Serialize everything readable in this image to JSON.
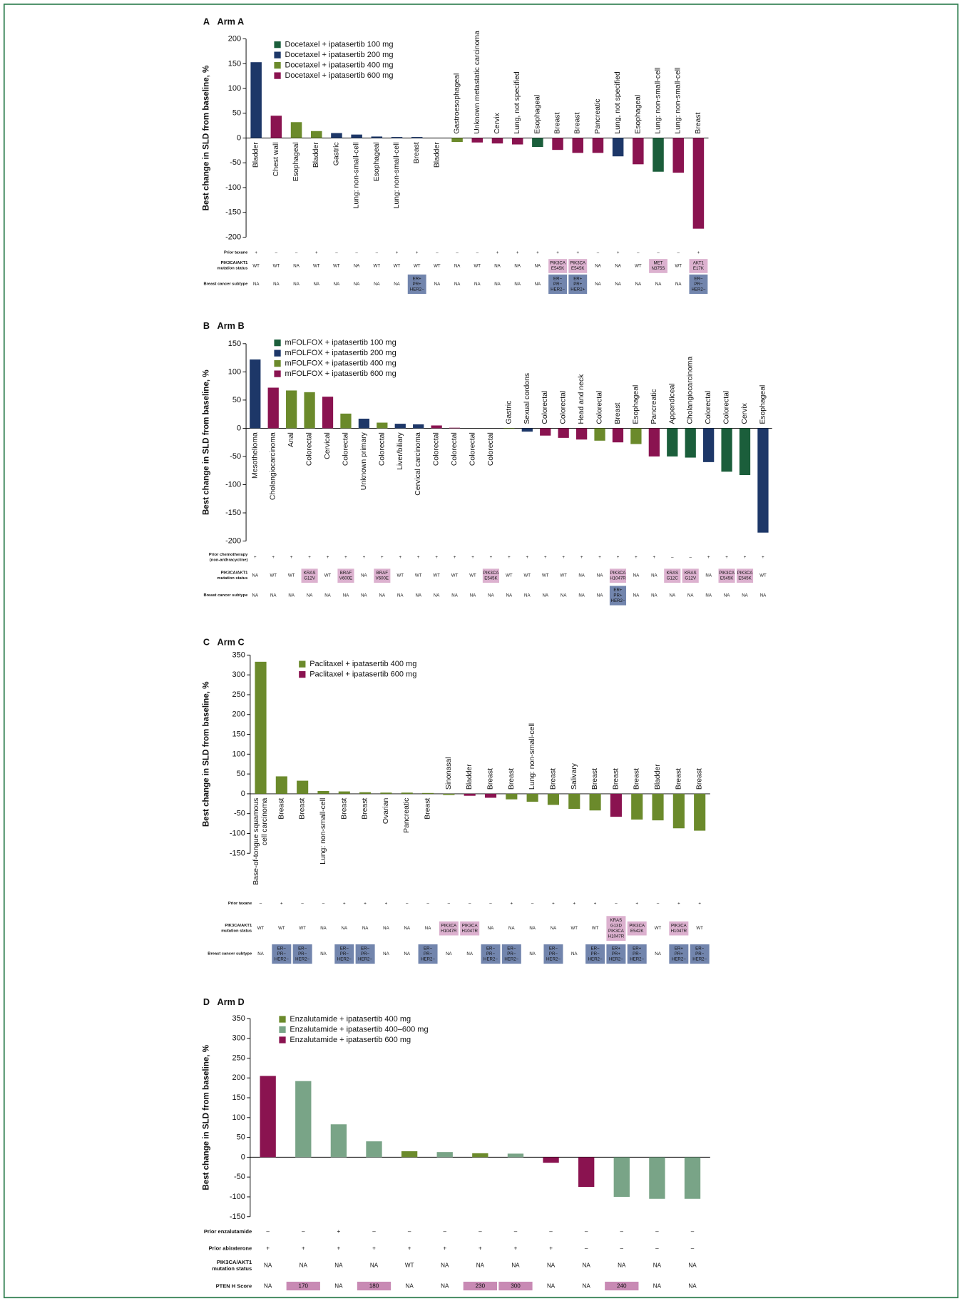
{
  "chart_data": [
    {
      "type": "bar",
      "panel": "A",
      "title": "Arm A",
      "ylabel": "Best change in SLD from baseline, %",
      "ylim": [
        -200,
        200
      ],
      "yticks": [
        -200,
        -150,
        -100,
        -50,
        0,
        50,
        100,
        150,
        200
      ],
      "categories": [
        "Bladder",
        "Chest wall",
        "Esophageal",
        "Bladder",
        "Gastric",
        "Lung: non-small-cell",
        "Esophageal",
        "Lung: non-small-cell",
        "Breast",
        "Bladder",
        "Gastroesophageal",
        "Unknown metastatic carcinoma",
        "Cervix",
        "Lung, not specified",
        "Esophageal",
        "Breast",
        "Breast",
        "Pancreatic",
        "Lung, not specified",
        "Esophageal",
        "Lung: non-small-cell",
        "Lung: non-small-cell",
        "Breast"
      ],
      "series": [
        {
          "name": "Docetaxel + ipatasertib 100 mg",
          "color": "#1b5e3b",
          "values": [
            null,
            null,
            null,
            null,
            null,
            null,
            null,
            null,
            null,
            null,
            null,
            null,
            null,
            null,
            -18,
            null,
            null,
            null,
            null,
            null,
            -68,
            null,
            null
          ]
        },
        {
          "name": "Docetaxel + ipatasertib 200 mg",
          "color": "#1d3768",
          "values": [
            153,
            null,
            null,
            null,
            10,
            7,
            3,
            2,
            2,
            0,
            null,
            null,
            null,
            null,
            null,
            null,
            null,
            null,
            -37,
            null,
            null,
            null,
            null
          ]
        },
        {
          "name": "Docetaxel + ipatasertib 400 mg",
          "color": "#6b8a2b",
          "values": [
            null,
            null,
            32,
            14,
            null,
            null,
            null,
            null,
            null,
            null,
            -8,
            null,
            null,
            null,
            null,
            null,
            null,
            null,
            null,
            null,
            null,
            null,
            null
          ]
        },
        {
          "name": "Docetaxel + ipatasertib 600 mg",
          "color": "#8a1350",
          "values": [
            null,
            45,
            null,
            null,
            null,
            null,
            null,
            null,
            null,
            null,
            null,
            -9,
            -11,
            -13,
            null,
            -24,
            -30,
            -30,
            null,
            -53,
            null,
            -70,
            -183
          ]
        }
      ],
      "table": [
        {
          "label": [
            "Prior taxane"
          ],
          "cells": [
            "+",
            "–",
            "–",
            "+",
            "–",
            "–",
            "–",
            "+",
            "+",
            "–",
            "–",
            "–",
            "+",
            "+",
            "+",
            "+",
            "+",
            "–",
            "+",
            "–",
            "–",
            "–",
            "+"
          ]
        },
        {
          "label": [
            "PIK3CA/AKT1",
            "mutation status"
          ],
          "box_color": "#dcb1cf",
          "cells": [
            "WT",
            "WT",
            "NA",
            "WT",
            "WT",
            "NA",
            "WT",
            "WT",
            "WT",
            "WT",
            "NA",
            "WT",
            "NA",
            "NA",
            "NA",
            [
              "PIK3CA",
              "E545K"
            ],
            [
              "PIK3CA",
              "E545K"
            ],
            "NA",
            "NA",
            "WT",
            [
              "MET",
              "N375S"
            ],
            "WT",
            [
              "AKT1",
              "E17K"
            ]
          ]
        },
        {
          "label": [
            "Breast cancer subtype"
          ],
          "box_color": "#7285ad",
          "cells": [
            "NA",
            "NA",
            "NA",
            "NA",
            "NA",
            "NA",
            "NA",
            "NA",
            [
              "ER+",
              "PR+",
              "HER2−"
            ],
            "NA",
            "NA",
            "NA",
            "NA",
            "NA",
            "NA",
            [
              "ER−",
              "PR−",
              "HER2−"
            ],
            [
              "ER+",
              "PR+",
              "HER2+"
            ],
            "NA",
            "NA",
            "NA",
            "NA",
            "NA",
            [
              "ER−",
              "PR−",
              "HER2−"
            ]
          ]
        }
      ]
    },
    {
      "type": "bar",
      "panel": "B",
      "title": "Arm B",
      "ylabel": "Best change in SLD from baseline, %",
      "ylim": [
        -200,
        150
      ],
      "yticks": [
        -200,
        -150,
        -100,
        -50,
        0,
        50,
        100,
        150
      ],
      "categories": [
        "Mesothelioma",
        "Cholangiocarcinoma",
        "Anal",
        "Colorectal",
        "Cervical",
        "Colorectal",
        "Unknown primary",
        "Colorectal",
        "Liver/biliary",
        "Cervical carcinoma",
        "Colorectal",
        "Colorectal",
        "Colorectal",
        "Colorectal",
        "Gastric",
        "Sexual cordons",
        "Colorectal",
        "Colorectal",
        "Head and neck",
        "Colorectal",
        "Breast",
        "Esophageal",
        "Pancreatic",
        "Appendiceal",
        "Cholangiocarcinoma",
        "Colorectal",
        "Colorectal",
        "Cervix",
        "Esophageal"
      ],
      "series": [
        {
          "name": "mFOLFOX + ipatasertib 100 mg",
          "color": "#1b5e3b",
          "values": [
            null,
            null,
            null,
            null,
            null,
            null,
            null,
            null,
            null,
            null,
            null,
            null,
            null,
            null,
            null,
            null,
            null,
            null,
            null,
            null,
            null,
            null,
            null,
            -50,
            -52,
            null,
            -77,
            -83,
            null
          ]
        },
        {
          "name": "mFOLFOX + ipatasertib 200 mg",
          "color": "#1d3768",
          "values": [
            122,
            null,
            null,
            null,
            null,
            null,
            17,
            null,
            8,
            7,
            null,
            null,
            null,
            null,
            null,
            -6,
            null,
            null,
            null,
            null,
            null,
            null,
            null,
            null,
            null,
            -60,
            null,
            null,
            -185
          ]
        },
        {
          "name": "mFOLFOX + ipatasertib 400 mg",
          "color": "#6b8a2b",
          "values": [
            null,
            null,
            67,
            64,
            null,
            26,
            null,
            10,
            null,
            null,
            null,
            null,
            0,
            0,
            -1,
            null,
            null,
            null,
            null,
            -22,
            null,
            -28,
            null,
            null,
            null,
            null,
            null,
            null,
            null
          ]
        },
        {
          "name": "mFOLFOX + ipatasertib 600 mg",
          "color": "#8a1350",
          "values": [
            null,
            72,
            null,
            null,
            56,
            null,
            null,
            null,
            null,
            null,
            5,
            1,
            null,
            null,
            null,
            null,
            -13,
            -17,
            -20,
            null,
            -25,
            null,
            -50,
            null,
            null,
            null,
            null,
            null,
            null
          ]
        }
      ],
      "table": [
        {
          "label": [
            "Prior chemotherapy",
            "(non-anthracycline)"
          ],
          "cells": [
            "+",
            "+",
            "+",
            "+",
            "+",
            "+",
            "+",
            "+",
            "+",
            "+",
            "+",
            "+",
            "+",
            "+",
            "+",
            "+",
            "+",
            "+",
            "+",
            "+",
            "+",
            "+",
            "+",
            "–",
            "–",
            "+",
            "+",
            "+",
            "+"
          ]
        },
        {
          "label": [
            "PIK3CA/AKT1",
            "mutation status"
          ],
          "box_color": "#dcb1cf",
          "cells": [
            "NA",
            "WT",
            "WT",
            [
              "KRAS",
              "G12V"
            ],
            "WT",
            [
              "BRAF",
              "V600E"
            ],
            "NA",
            [
              "BRAF",
              "V600E"
            ],
            "WT",
            "WT",
            "WT",
            "WT",
            "WT",
            [
              "PIK3CA",
              "E545K"
            ],
            "WT",
            "WT",
            "WT",
            "WT",
            "NA",
            "NA",
            [
              "PIK3CA",
              "H1047R"
            ],
            "NA",
            "NA",
            [
              "KRAS",
              "G12C"
            ],
            [
              "KRAS",
              "G12V"
            ],
            "NA",
            [
              "PIK3CA",
              "E545K"
            ],
            [
              "PIK3CA",
              "E545K"
            ],
            "WT"
          ]
        },
        {
          "label": [
            "Breast cancer subtype"
          ],
          "box_color": "#7285ad",
          "cells": [
            "NA",
            "NA",
            "NA",
            "NA",
            "NA",
            "NA",
            "NA",
            "NA",
            "NA",
            "NA",
            "NA",
            "NA",
            "NA",
            "NA",
            "NA",
            "NA",
            "NA",
            "NA",
            "NA",
            "NA",
            [
              "ER+",
              "PR+",
              "HER2−"
            ],
            "NA",
            "NA",
            "NA",
            "NA",
            "NA",
            "NA",
            "NA",
            "NA"
          ]
        }
      ]
    },
    {
      "type": "bar",
      "panel": "C",
      "title": "Arm C",
      "ylabel": "Best change in SLD from baseline, %",
      "ylim": [
        -150,
        350
      ],
      "yticks": [
        -150,
        -100,
        -50,
        0,
        50,
        100,
        150,
        200,
        250,
        300,
        350
      ],
      "categories": [
        [
          "Base-of-tongue squamous",
          "cell carcinoma"
        ],
        "Breast",
        "Breast",
        "Lung: non-small-cell",
        "Breast",
        "Breast",
        "Ovarian",
        "Pancreatic",
        "Breast",
        "Sinonasal",
        "Bladder",
        "Breast",
        "Breast",
        "Lung: non-small-cell",
        "Breast",
        "Salivary",
        "Breast",
        "Breast",
        "Breast",
        "Bladder",
        "Breast",
        "Breast"
      ],
      "series": [
        {
          "name": "Paclitaxel + ipatasertib 400 mg",
          "color": "#6b8a2b",
          "values": [
            333,
            44,
            33,
            7,
            6,
            4,
            3,
            3,
            2,
            -3,
            null,
            null,
            -14,
            -20,
            -28,
            -38,
            -42,
            null,
            -65,
            -67,
            -87,
            -93
          ]
        },
        {
          "name": "Paclitaxel + ipatasertib 600 mg",
          "color": "#8a1350",
          "values": [
            null,
            null,
            null,
            null,
            null,
            null,
            null,
            null,
            null,
            null,
            -5,
            -10,
            null,
            null,
            null,
            null,
            null,
            -58,
            null,
            null,
            null,
            null
          ]
        }
      ],
      "table": [
        {
          "label": [
            "Prior taxane"
          ],
          "cells": [
            "–",
            "+",
            "–",
            "–",
            "+",
            "+",
            "+",
            "–",
            "–",
            "–",
            "–",
            "–",
            "+",
            "–",
            "+",
            "+",
            "+",
            "–",
            "+",
            "–",
            "+",
            "+"
          ]
        },
        {
          "label": [
            "PIK3CA/AKT1",
            "mutation status"
          ],
          "box_color": "#dcb1cf",
          "cells": [
            "WT",
            "WT",
            "WT",
            "NA",
            "NA",
            "NA",
            "NA",
            "NA",
            "NA",
            [
              "PIK3CA",
              "H1047R"
            ],
            [
              "PIK3CA",
              "H1047R"
            ],
            "NA",
            "NA",
            "NA",
            "NA",
            "WT",
            "WT",
            [
              "KRAS",
              "G13D",
              "PIK3CA",
              "H1047R"
            ],
            [
              "PIK3CA",
              "E542K"
            ],
            "WT",
            [
              "PIK3CA",
              "H1047R"
            ],
            "WT"
          ]
        },
        {
          "label": [
            "Breast cancer subtype"
          ],
          "box_color": "#7285ad",
          "cells": [
            "NA",
            [
              "ER−",
              "PR−",
              "HER2−"
            ],
            [
              "ER−",
              "PR−",
              "HER2−"
            ],
            "NA",
            [
              "ER−",
              "PR−",
              "HER2−"
            ],
            [
              "ER−",
              "PR−",
              "HER2−"
            ],
            "NA",
            "NA",
            [
              "ER−",
              "PR−",
              "HER2−"
            ],
            "NA",
            "NA",
            [
              "ER−",
              "PR−",
              "HER2−"
            ],
            [
              "ER−",
              "PR−",
              "HER2−"
            ],
            "NA",
            [
              "ER−",
              "PR−",
              "HER2−"
            ],
            "NA",
            [
              "ER−",
              "PR−",
              "HER2−"
            ],
            [
              "ER+",
              "PR+",
              "HER2−"
            ],
            [
              "ER+",
              "PR−",
              "HER2−"
            ],
            "NA",
            [
              "ER+",
              "PR+",
              "HER2−"
            ],
            [
              "ER−",
              "PR−",
              "HER2−"
            ]
          ]
        }
      ]
    },
    {
      "type": "bar",
      "panel": "D",
      "title": "Arm D",
      "ylabel": "Best change in SLD from baseline, %",
      "ylim": [
        -150,
        350
      ],
      "yticks": [
        -150,
        -100,
        -50,
        0,
        50,
        100,
        150,
        200,
        250,
        300,
        350
      ],
      "series": [
        {
          "name": "Enzalutamide + ipatasertib 400 mg",
          "color": "#6b8a2b",
          "values": [
            null,
            null,
            null,
            null,
            15,
            null,
            10,
            null,
            null,
            null,
            null,
            null,
            null
          ]
        },
        {
          "name": "Enzalutamide + ipatasertib 400–600 mg",
          "color": "#79a487",
          "values": [
            null,
            192,
            83,
            40,
            null,
            13,
            null,
            9,
            null,
            null,
            -100,
            -105,
            -105
          ]
        },
        {
          "name": "Enzalutamide + ipatasertib 600 mg",
          "color": "#8a1350",
          "values": [
            205,
            null,
            null,
            null,
            null,
            null,
            null,
            null,
            -14,
            -75,
            null,
            null,
            null
          ]
        }
      ],
      "table": [
        {
          "label": [
            "Prior enzalutamide"
          ],
          "cells": [
            "–",
            "–",
            "+",
            "–",
            "–",
            "–",
            "–",
            "–",
            "–",
            "–",
            "–",
            "–",
            "–"
          ]
        },
        {
          "label": [
            "Prior abiraterone"
          ],
          "cells": [
            "+",
            "+",
            "+",
            "+",
            "+",
            "+",
            "+",
            "+",
            "+",
            "–",
            "–",
            "–",
            "–"
          ]
        },
        {
          "label": [
            "PIK3CA/AKT1",
            "mutation status"
          ],
          "box_color": "#dcb1cf",
          "cells": [
            "NA",
            "NA",
            "NA",
            "NA",
            "WT",
            "NA",
            "NA",
            "NA",
            "NA",
            "NA",
            "NA",
            "NA",
            "NA"
          ]
        },
        {
          "label": [
            "PTEN H Score"
          ],
          "box_color": "#c88ab4",
          "cells": [
            "NA",
            [
              "170"
            ],
            "NA",
            [
              "180"
            ],
            "NA",
            "NA",
            [
              "230"
            ],
            [
              "300"
            ],
            "NA",
            "NA",
            [
              "240"
            ],
            "NA",
            "NA"
          ]
        }
      ]
    }
  ]
}
